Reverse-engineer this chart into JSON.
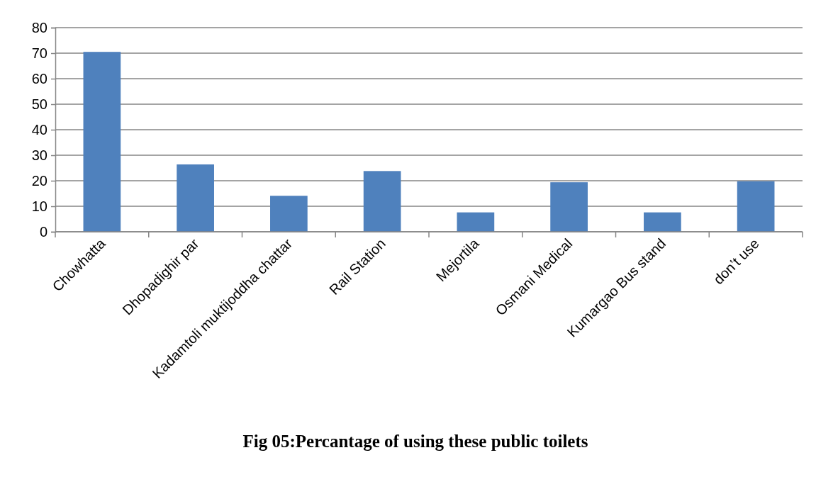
{
  "chart_data": {
    "type": "bar",
    "title": "Fig 05:Percantage of using these public toilets",
    "categories": [
      "Chowhatta",
      "Dhopadighir par",
      "Kadamtoli muktijoddha chattar",
      "Rail Station",
      "Mejortila",
      "Osmani Medical",
      "Kumargao Bus stand",
      "don’t use"
    ],
    "values": [
      70.5,
      26.4,
      14.1,
      23.8,
      7.6,
      19.4,
      7.6,
      19.8
    ],
    "color": "#4f81bd",
    "ylim": [
      0,
      80
    ],
    "yticks": [
      0,
      10,
      20,
      30,
      40,
      50,
      60,
      70,
      80
    ],
    "grid": "y"
  }
}
